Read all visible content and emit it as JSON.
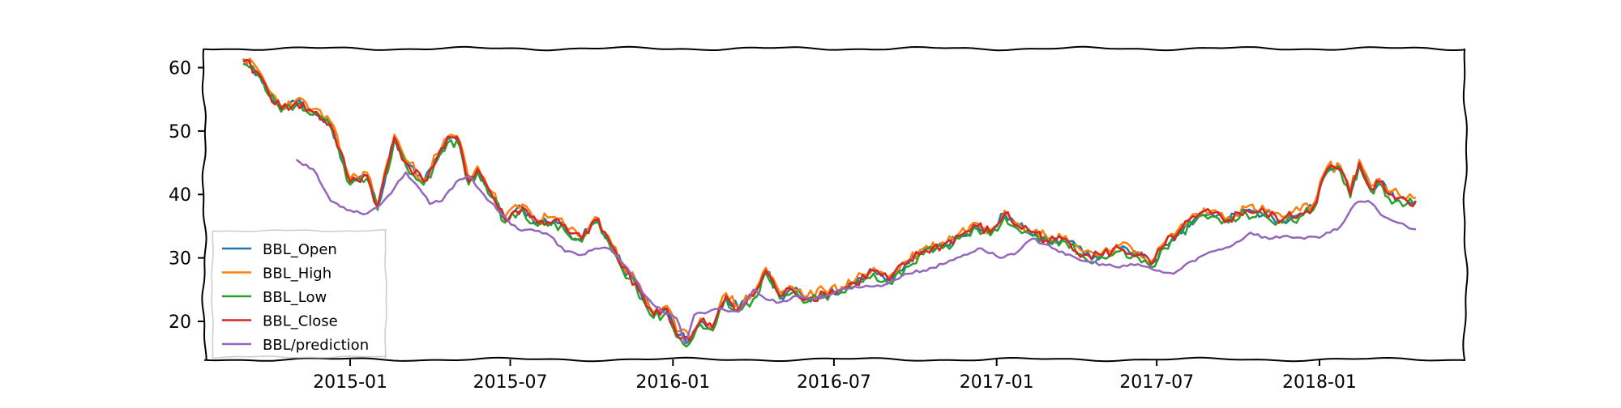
{
  "chart_data": {
    "type": "line",
    "title": "",
    "xlabel": "",
    "ylabel": "",
    "x_ticks": [
      "2015-01",
      "2015-07",
      "2016-01",
      "2016-07",
      "2017-01",
      "2017-07",
      "2018-01"
    ],
    "y_ticks": [
      20,
      30,
      40,
      50,
      60
    ],
    "xlim": [
      "2014-07-20",
      "2018-06-15"
    ],
    "ylim": [
      14,
      63
    ],
    "grid": false,
    "legend_position": "lower-left",
    "style": "xkcd",
    "series": [
      {
        "name": "BBL_Open",
        "color": "#1f77b4",
        "dates": [],
        "values": []
      },
      {
        "name": "BBL_High",
        "color": "#ff7f0e",
        "dates": [],
        "values": []
      },
      {
        "name": "BBL_Low",
        "color": "#2ca02c",
        "dates": [],
        "values": []
      },
      {
        "name": "BBL_Close",
        "color": "#d62728",
        "dates": [
          "2014-09-02",
          "2014-09-20",
          "2014-10-01",
          "2014-10-15",
          "2014-11-01",
          "2014-11-20",
          "2014-12-10",
          "2015-01-01",
          "2015-01-20",
          "2015-02-01",
          "2015-02-20",
          "2015-03-05",
          "2015-03-25",
          "2015-04-10",
          "2015-04-25",
          "2015-05-05",
          "2015-05-15",
          "2015-05-25",
          "2015-06-10",
          "2015-06-25",
          "2015-07-15",
          "2015-08-01",
          "2015-08-20",
          "2015-09-05",
          "2015-09-20",
          "2015-10-05",
          "2015-10-20",
          "2015-11-05",
          "2015-11-20",
          "2015-12-10",
          "2015-12-25",
          "2016-01-05",
          "2016-01-20",
          "2016-02-01",
          "2016-02-15",
          "2016-03-01",
          "2016-03-15",
          "2016-04-01",
          "2016-04-15",
          "2016-05-01",
          "2016-05-15",
          "2016-06-01",
          "2016-06-20",
          "2016-07-10",
          "2016-07-25",
          "2016-08-15",
          "2016-09-01",
          "2016-09-20",
          "2016-10-10",
          "2016-11-01",
          "2016-11-20",
          "2016-12-10",
          "2016-12-25",
          "2017-01-10",
          "2017-01-25",
          "2017-02-15",
          "2017-03-01",
          "2017-03-20",
          "2017-04-10",
          "2017-05-01",
          "2017-05-20",
          "2017-06-10",
          "2017-06-25",
          "2017-07-10",
          "2017-07-25",
          "2017-08-15",
          "2017-09-01",
          "2017-09-20",
          "2017-10-10",
          "2017-11-01",
          "2017-11-20",
          "2017-12-10",
          "2017-12-25",
          "2018-01-10",
          "2018-01-25",
          "2018-02-05",
          "2018-02-15",
          "2018-02-28",
          "2018-03-10",
          "2018-03-20",
          "2018-04-01",
          "2018-04-10",
          "2018-04-20"
        ],
        "values": [
          61,
          59,
          56,
          53.5,
          54.5,
          53,
          51,
          42,
          43,
          38,
          49,
          45,
          42,
          46,
          49,
          48,
          42,
          44,
          40,
          36,
          38,
          35.5,
          36,
          34,
          33,
          36,
          33,
          28.5,
          26,
          21,
          22,
          18,
          17,
          20,
          19,
          24,
          22,
          24,
          28,
          24,
          25,
          23.5,
          24.5,
          25,
          26,
          28,
          26.5,
          29,
          31,
          32,
          33.5,
          35,
          34,
          37,
          35,
          34,
          32.5,
          33,
          30.5,
          30.5,
          31.5,
          30.5,
          29,
          32,
          34,
          36.5,
          37,
          36,
          37.5,
          37,
          36,
          37,
          38,
          44,
          44,
          40,
          45,
          41,
          42,
          40,
          39.5,
          39,
          39
        ]
      },
      {
        "name": "BBL/prediction",
        "color": "#9467bd",
        "dates": [
          "2014-11-01",
          "2014-11-20",
          "2014-12-10",
          "2015-01-01",
          "2015-01-20",
          "2015-02-05",
          "2015-02-20",
          "2015-03-05",
          "2015-03-20",
          "2015-04-01",
          "2015-04-15",
          "2015-05-01",
          "2015-05-15",
          "2015-06-01",
          "2015-06-20",
          "2015-07-10",
          "2015-07-25",
          "2015-08-15",
          "2015-09-01",
          "2015-09-20",
          "2015-10-05",
          "2015-10-20",
          "2015-11-10",
          "2015-12-01",
          "2015-12-20",
          "2016-01-05",
          "2016-01-15",
          "2016-01-25",
          "2016-02-10",
          "2016-02-25",
          "2016-03-15",
          "2016-04-01",
          "2016-04-15",
          "2016-05-01",
          "2016-05-20",
          "2016-06-10",
          "2016-07-01",
          "2016-07-25",
          "2016-08-15",
          "2016-09-01",
          "2016-09-20",
          "2016-10-10",
          "2016-11-01",
          "2016-11-25",
          "2016-12-15",
          "2017-01-05",
          "2017-01-25",
          "2017-02-10",
          "2017-03-01",
          "2017-03-20",
          "2017-04-10",
          "2017-05-01",
          "2017-05-20",
          "2017-06-10",
          "2017-06-30",
          "2017-07-20",
          "2017-08-10",
          "2017-09-01",
          "2017-09-25",
          "2017-10-15",
          "2017-11-05",
          "2017-11-25",
          "2017-12-15",
          "2018-01-05",
          "2018-01-25",
          "2018-02-10",
          "2018-02-25",
          "2018-03-15",
          "2018-04-01",
          "2018-04-20"
        ],
        "values": [
          45.5,
          44,
          39,
          37.5,
          37,
          38.5,
          41,
          43.5,
          41,
          38.5,
          39,
          42,
          43,
          40,
          37,
          34.5,
          34.5,
          33.5,
          31,
          30.5,
          31.5,
          31.5,
          28.5,
          24,
          21.5,
          20.5,
          16.5,
          21,
          21.5,
          22,
          21.5,
          25,
          23.5,
          23,
          24,
          23.5,
          24.5,
          25.5,
          25.5,
          26,
          27.5,
          28,
          29,
          30.5,
          31.5,
          30,
          31,
          33,
          32,
          30.5,
          29.5,
          29,
          28.5,
          29,
          28,
          27.5,
          29.5,
          31,
          32,
          34,
          33,
          33.5,
          33,
          33.5,
          35,
          38.5,
          39,
          36.5,
          35.5,
          34.5
        ]
      }
    ]
  }
}
